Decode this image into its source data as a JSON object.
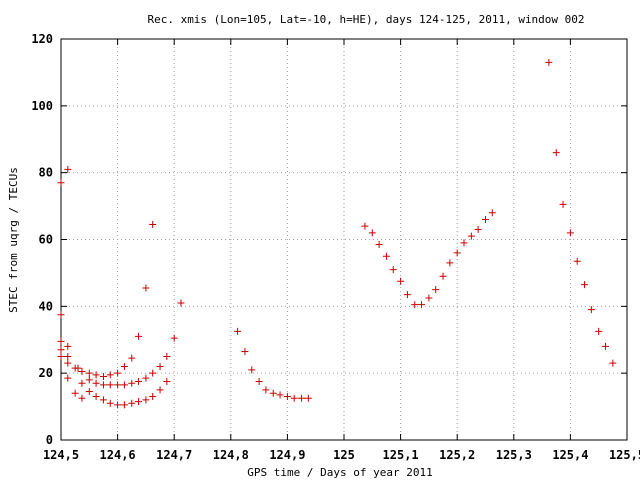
{
  "chart_data": {
    "type": "scatter",
    "title": "Rec. xmis (Lon=105, Lat=-10, h=HE), days 124-125, 2011, window 002",
    "xlabel": "GPS time / Days of year 2011",
    "ylabel": "STEC from uqrg / TECUs",
    "xlim": [
      124.5,
      125.5
    ],
    "ylim": [
      0,
      120
    ],
    "x_ticks": [
      124.5,
      124.6,
      124.7,
      124.8,
      124.9,
      125,
      125.1,
      125.2,
      125.3,
      125.4,
      125.5
    ],
    "x_tick_labels": [
      "124,5",
      "124,6",
      "124,7",
      "124,8",
      "124,9",
      "125",
      "125,1",
      "125,2",
      "125,3",
      "125,4",
      "125,5"
    ],
    "y_ticks": [
      0,
      20,
      40,
      60,
      80,
      100,
      120
    ],
    "y_tick_labels": [
      "0",
      "20",
      "40",
      "60",
      "80",
      "100",
      "120"
    ],
    "grid": true,
    "marker_color": "#cc0000",
    "series": [
      {
        "marker": "plus",
        "points": [
          [
            124.5,
            77.0
          ],
          [
            124.5,
            37.5
          ],
          [
            124.5,
            29.5
          ],
          [
            124.5,
            27.0
          ],
          [
            124.5,
            25.0
          ],
          [
            124.512,
            81.0
          ],
          [
            124.512,
            28.0
          ],
          [
            124.512,
            25.0
          ],
          [
            124.512,
            23.0
          ],
          [
            124.512,
            18.5
          ],
          [
            124.525,
            21.5
          ],
          [
            124.525,
            14.0
          ],
          [
            124.53,
            21.5
          ],
          [
            124.537,
            20.5
          ],
          [
            124.537,
            17.0
          ],
          [
            124.537,
            12.5
          ],
          [
            124.55,
            20.0
          ],
          [
            124.55,
            18.0
          ],
          [
            124.55,
            14.5
          ],
          [
            124.562,
            19.5
          ],
          [
            124.562,
            17.0
          ],
          [
            124.562,
            13.0
          ],
          [
            124.575,
            19.0
          ],
          [
            124.575,
            16.5
          ],
          [
            124.575,
            12.0
          ],
          [
            124.587,
            19.5
          ],
          [
            124.587,
            16.5
          ],
          [
            124.587,
            11.0
          ],
          [
            124.6,
            20.0
          ],
          [
            124.6,
            16.5
          ],
          [
            124.6,
            10.5
          ],
          [
            124.612,
            22.0
          ],
          [
            124.612,
            16.5
          ],
          [
            124.612,
            10.5
          ],
          [
            124.625,
            24.5
          ],
          [
            124.625,
            17.0
          ],
          [
            124.625,
            11.0
          ],
          [
            124.637,
            31.0
          ],
          [
            124.637,
            17.5
          ],
          [
            124.637,
            11.5
          ],
          [
            124.65,
            45.5
          ],
          [
            124.65,
            18.5
          ],
          [
            124.65,
            12.0
          ],
          [
            124.662,
            64.5
          ],
          [
            124.662,
            20.0
          ],
          [
            124.662,
            13.0
          ],
          [
            124.675,
            22.0
          ],
          [
            124.675,
            15.0
          ],
          [
            124.687,
            25.0
          ],
          [
            124.687,
            17.5
          ],
          [
            124.7,
            30.5
          ],
          [
            124.712,
            41.0
          ],
          [
            124.812,
            32.5
          ],
          [
            124.825,
            26.5
          ],
          [
            124.837,
            21.0
          ],
          [
            124.85,
            17.5
          ],
          [
            124.862,
            15.0
          ],
          [
            124.875,
            14.0
          ],
          [
            124.887,
            13.5
          ],
          [
            124.9,
            13.0
          ],
          [
            124.912,
            12.5
          ],
          [
            124.925,
            12.5
          ],
          [
            124.937,
            12.5
          ],
          [
            125.037,
            64.0
          ],
          [
            125.05,
            62.0
          ],
          [
            125.062,
            58.5
          ],
          [
            125.075,
            55.0
          ],
          [
            125.087,
            51.0
          ],
          [
            125.1,
            47.5
          ],
          [
            125.112,
            43.5
          ],
          [
            125.125,
            40.5
          ],
          [
            125.137,
            40.5
          ],
          [
            125.15,
            42.5
          ],
          [
            125.162,
            45.0
          ],
          [
            125.175,
            49.0
          ],
          [
            125.187,
            53.0
          ],
          [
            125.2,
            56.0
          ],
          [
            125.212,
            59.0
          ],
          [
            125.225,
            61.0
          ],
          [
            125.237,
            63.0
          ],
          [
            125.25,
            66.0
          ],
          [
            125.262,
            68.0
          ],
          [
            125.362,
            113.0
          ],
          [
            125.375,
            86.0
          ],
          [
            125.387,
            70.5
          ],
          [
            125.4,
            62.0
          ],
          [
            125.412,
            53.5
          ],
          [
            125.425,
            46.5
          ],
          [
            125.437,
            39.0
          ],
          [
            125.45,
            32.5
          ],
          [
            125.462,
            28.0
          ],
          [
            125.475,
            23.0
          ]
        ]
      }
    ]
  }
}
